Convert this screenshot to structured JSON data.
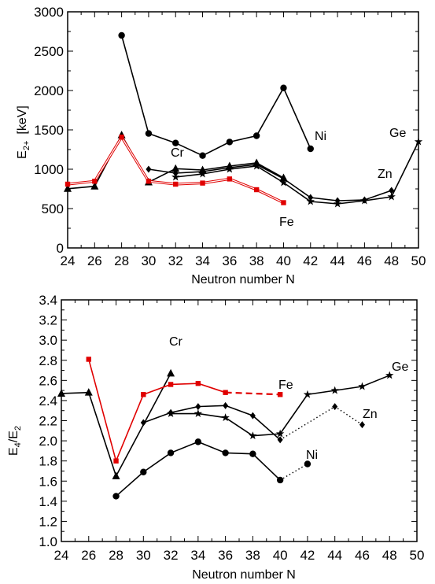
{
  "chart_data": [
    {
      "type": "line",
      "xlabel": "Neutron number N",
      "ylabel": "E2+ [keV]",
      "ylabel_main": "E",
      "ylabel_sub": "2+",
      "ylabel_unit": "[keV]",
      "xlim": [
        24,
        50
      ],
      "ylim": [
        0,
        3000
      ],
      "xticks": [
        "24",
        "26",
        "28",
        "30",
        "32",
        "34",
        "36",
        "38",
        "40",
        "42",
        "44",
        "46",
        "48",
        "50"
      ],
      "yticks": [
        "0",
        "500",
        "1000",
        "1500",
        "2000",
        "2500",
        "3000"
      ],
      "grid": false,
      "series": [
        {
          "name": "Ni",
          "color": "#000000",
          "marker": "circle",
          "x": [
            28,
            30,
            32,
            34,
            36,
            38,
            40,
            42
          ],
          "y": [
            2700,
            1454,
            1333,
            1173,
            1346,
            1425,
            2033,
            1260
          ]
        },
        {
          "name": "Cr",
          "color": "#000000",
          "marker": "triangle",
          "x": [
            24,
            26,
            28,
            30,
            32,
            34,
            36,
            38,
            40
          ],
          "y": [
            752,
            783,
            1434,
            835,
            1007,
            990,
            1040,
            1080,
            890
          ]
        },
        {
          "name": "Fe",
          "color": "#e00000",
          "marker": "square",
          "double_line": true,
          "x": [
            24,
            26,
            28,
            30,
            32,
            34,
            36,
            38,
            40
          ],
          "y": [
            810,
            847,
            1408,
            847,
            810,
            824,
            876,
            740,
            575
          ]
        },
        {
          "name": "Zn",
          "color": "#000000",
          "marker": "diamond",
          "x": [
            30,
            32,
            34,
            36,
            38,
            40,
            42,
            44,
            46,
            48
          ],
          "y": [
            1000,
            950,
            970,
            1020,
            1060,
            880,
            640,
            600,
            610,
            730
          ]
        },
        {
          "name": "Ge",
          "color": "#000000",
          "marker": "star",
          "x": [
            32,
            34,
            36,
            38,
            40,
            42,
            44,
            46,
            48,
            50
          ],
          "y": [
            900,
            940,
            1000,
            1040,
            830,
            590,
            560,
            600,
            650,
            1350
          ]
        }
      ]
    },
    {
      "type": "line",
      "xlabel": "Neutron number N",
      "ylabel": "E4/E2",
      "ylabel_main": "E",
      "ylabel_sub1": "4",
      "ylabel_mid": "/E",
      "ylabel_sub2": "2",
      "xlim": [
        24,
        50
      ],
      "ylim": [
        1.0,
        3.4
      ],
      "xticks": [
        "24",
        "26",
        "28",
        "30",
        "32",
        "34",
        "36",
        "38",
        "40",
        "42",
        "44",
        "46",
        "48",
        "50"
      ],
      "yticks": [
        "1.0",
        "1.2",
        "1.4",
        "1.6",
        "1.8",
        "2.0",
        "2.2",
        "2.4",
        "2.6",
        "2.8",
        "3.0",
        "3.2",
        "3.4"
      ],
      "grid": false,
      "series": [
        {
          "name": "Ni",
          "color": "#000000",
          "marker": "circle",
          "x": [
            28,
            30,
            32,
            34,
            36,
            38,
            40
          ],
          "y": [
            1.45,
            1.69,
            1.88,
            1.99,
            1.88,
            1.87,
            1.61
          ],
          "dotted_ext": {
            "x": [
              40,
              42
            ],
            "y": [
              1.61,
              1.77
            ]
          }
        },
        {
          "name": "Cr",
          "color": "#000000",
          "marker": "triangle",
          "x": [
            24,
            26,
            28,
            32
          ],
          "y": [
            2.47,
            2.48,
            1.65,
            2.67
          ]
        },
        {
          "name": "Fe",
          "color": "#e00000",
          "marker": "square",
          "x": [
            26,
            28,
            30,
            32,
            34,
            36
          ],
          "y": [
            2.81,
            1.8,
            2.46,
            2.56,
            2.57,
            2.48
          ],
          "dashed_ext": {
            "x": [
              36,
              40
            ],
            "y": [
              2.48,
              2.46
            ]
          }
        },
        {
          "name": "Zn",
          "color": "#000000",
          "marker": "diamond",
          "x": [
            30,
            32,
            34,
            36,
            38,
            40
          ],
          "y": [
            2.18,
            2.28,
            2.34,
            2.35,
            2.25,
            2.01
          ],
          "dotted_ext": {
            "x": [
              40,
              44,
              46
            ],
            "y": [
              2.01,
              2.34,
              2.16
            ]
          }
        },
        {
          "name": "Ge",
          "color": "#000000",
          "marker": "star",
          "x": [
            32,
            34,
            36,
            38,
            40,
            42,
            44,
            46,
            48
          ],
          "y": [
            2.27,
            2.27,
            2.23,
            2.05,
            2.07,
            2.46,
            2.5,
            2.54,
            2.65
          ]
        }
      ]
    }
  ]
}
